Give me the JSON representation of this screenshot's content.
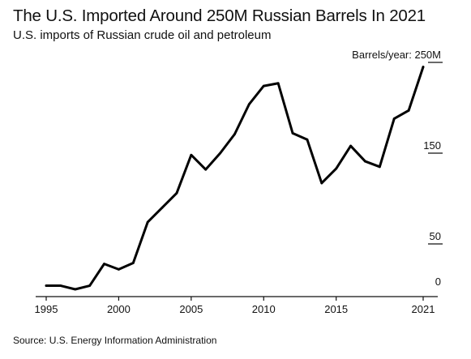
{
  "header": {
    "title": "The U.S. Imported Around 250M Russian Barrels In 2021",
    "subtitle": "U.S. imports of Russian crude oil and petroleum"
  },
  "footer": {
    "source": "Source: U.S. Energy Information Administration"
  },
  "colors": {
    "line": "#000000",
    "text": "#111111",
    "axis": "#111111"
  },
  "chart_data": {
    "type": "line",
    "title": "The U.S. Imported Around 250M Russian Barrels In 2021",
    "subtitle": "U.S. imports of Russian crude oil and petroleum",
    "ylabel": "Barrels/year: 250M",
    "ylim": [
      0,
      250
    ],
    "xlim": [
      1995,
      2021
    ],
    "x_ticks": [
      1995,
      2000,
      2005,
      2010,
      2015,
      2021
    ],
    "y_ticks": [
      {
        "value": 0,
        "label": "0"
      },
      {
        "value": 50,
        "label": "50"
      },
      {
        "value": 150,
        "label": "150"
      },
      {
        "value": 250,
        "label": "Barrels/year: 250M"
      }
    ],
    "grid": false,
    "series": [
      {
        "x": [
          1995,
          1996,
          1997,
          1998,
          1999,
          2000,
          2001,
          2002,
          2003,
          2004,
          2005,
          2006,
          2007,
          2008,
          2009,
          2010,
          2011,
          2012,
          2013,
          2014,
          2015,
          2016,
          2017,
          2018,
          2019,
          2020,
          2021
        ],
        "values": [
          4,
          4,
          0,
          4,
          28,
          22,
          29,
          74,
          90,
          106,
          148,
          132,
          150,
          171,
          204,
          224,
          227,
          172,
          165,
          117,
          133,
          158,
          141,
          135,
          188,
          197,
          245
        ]
      }
    ]
  }
}
